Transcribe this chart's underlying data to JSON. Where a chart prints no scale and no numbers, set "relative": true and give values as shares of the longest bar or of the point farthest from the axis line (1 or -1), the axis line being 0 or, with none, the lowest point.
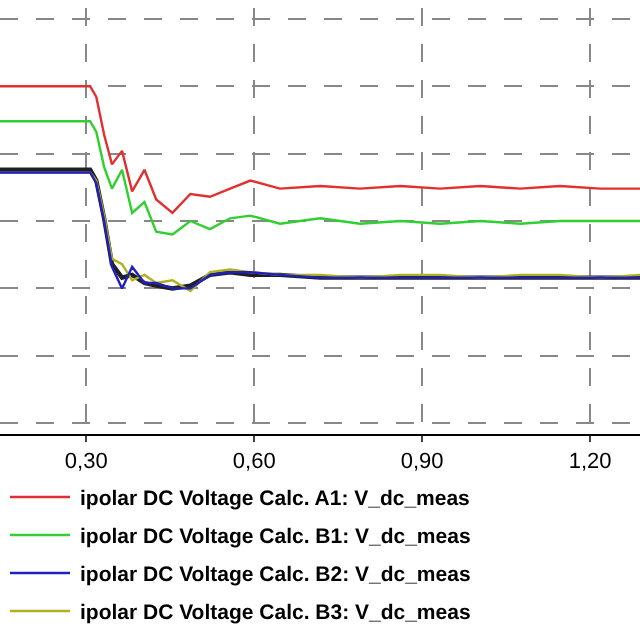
{
  "chart_data": {
    "type": "line",
    "relative": true,
    "grid": true,
    "legend": "bottom",
    "marker": "none",
    "line_style": "solid",
    "x": [
      0.146,
      0.307,
      0.318,
      0.332,
      0.346,
      0.364,
      0.382,
      0.404,
      0.425,
      0.454,
      0.486,
      0.521,
      0.557,
      0.593,
      0.646,
      0.718,
      0.789,
      0.861,
      0.932,
      1.004,
      1.075,
      1.146,
      1.218,
      1.289
    ],
    "xlim": [
      0.146,
      1.289
    ],
    "xticks": [
      {
        "value": 0.3,
        "label": "0,30"
      },
      {
        "value": 0.6,
        "label": "0,60"
      },
      {
        "value": 0.9,
        "label": "0,90"
      },
      {
        "value": 1.2,
        "label": "1,20"
      }
    ],
    "series": [
      {
        "name": "ipolar DC Voltage Calc. A1: V_dc_meas",
        "color": "#e03030",
        "values": [
          1,
          1,
          0.96,
          0.82,
          0.71,
          0.76,
          0.61,
          0.69,
          0.58,
          0.53,
          0.6,
          0.59,
          0.62,
          0.65,
          0.62,
          0.63,
          0.62,
          0.63,
          0.62,
          0.63,
          0.62,
          0.63,
          0.62,
          0.62
        ]
      },
      {
        "name": "ipolar DC Voltage Calc. B1: V_dc_meas",
        "color": "#30d030",
        "values": [
          0.87,
          0.87,
          0.83,
          0.7,
          0.62,
          0.69,
          0.53,
          0.57,
          0.46,
          0.45,
          0.5,
          0.47,
          0.51,
          0.52,
          0.49,
          0.51,
          0.49,
          0.5,
          0.49,
          0.5,
          0.49,
          0.5,
          0.5,
          0.5
        ]
      },
      {
        "name": "ipolar DC Voltage Calc. B2: V_dc_meas",
        "color": "#2020c0",
        "values": [
          0.68,
          0.68,
          0.64,
          0.5,
          0.33,
          0.25,
          0.33,
          0.27,
          0.27,
          0.25,
          0.25,
          0.3,
          0.31,
          0.31,
          0.3,
          0.29,
          0.29,
          0.29,
          0.29,
          0.29,
          0.29,
          0.29,
          0.29,
          0.29
        ]
      },
      {
        "name": "ipolar DC Voltage Calc. B3: V_dc_meas",
        "color": "#b0b020",
        "values": [
          0.68,
          0.68,
          0.65,
          0.52,
          0.36,
          0.34,
          0.28,
          0.3,
          0.27,
          0.28,
          0.24,
          0.31,
          0.32,
          0.31,
          0.3,
          0.3,
          0.29,
          0.3,
          0.3,
          0.29,
          0.3,
          0.3,
          0.29,
          0.3
        ]
      },
      {
        "color": "#202020",
        "values": [
          0.69,
          0.69,
          0.65,
          0.51,
          0.34,
          0.29,
          0.3,
          0.27,
          0.26,
          0.25,
          0.26,
          0.3,
          0.31,
          0.3,
          0.3,
          0.29,
          0.29,
          0.29,
          0.29,
          0.29,
          0.29,
          0.29,
          0.29,
          0.29
        ]
      }
    ]
  }
}
